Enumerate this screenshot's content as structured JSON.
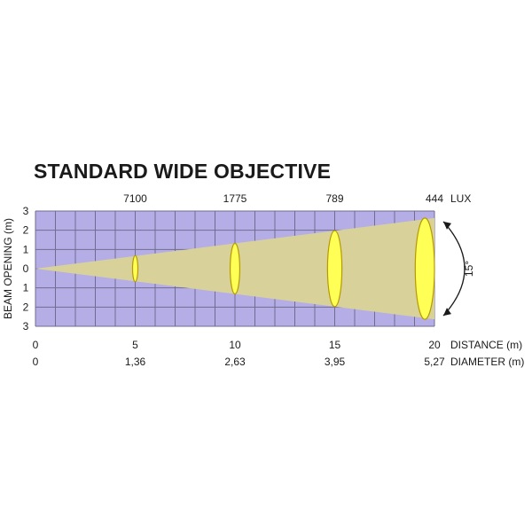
{
  "title": "STANDARD WIDE OBJECTIVE",
  "y_axis_label": "BEAM OPENING (m)",
  "y_tick_labels": [
    "3",
    "2",
    "1",
    "0",
    "1",
    "2",
    "3"
  ],
  "lux_label": "LUX",
  "distance_label": "DISTANCE (m)",
  "diameter_label": "DIAMETER (m)",
  "angle_label": "15°",
  "colors": {
    "grid_fill": "#b5aee6",
    "grid_line": "#6f6c8f",
    "beam_fill": "#d8d29a",
    "spot_fill": "#ffff55",
    "spot_stroke": "#b59a00"
  },
  "points": [
    {
      "distance": "0",
      "diameter": "0",
      "lux": ""
    },
    {
      "distance": "5",
      "diameter": "1,36",
      "lux": "7100"
    },
    {
      "distance": "10",
      "diameter": "2,63",
      "lux": "1775"
    },
    {
      "distance": "15",
      "diameter": "3,95",
      "lux": "789"
    },
    {
      "distance": "20",
      "diameter": "5,27",
      "lux": "444"
    }
  ]
}
